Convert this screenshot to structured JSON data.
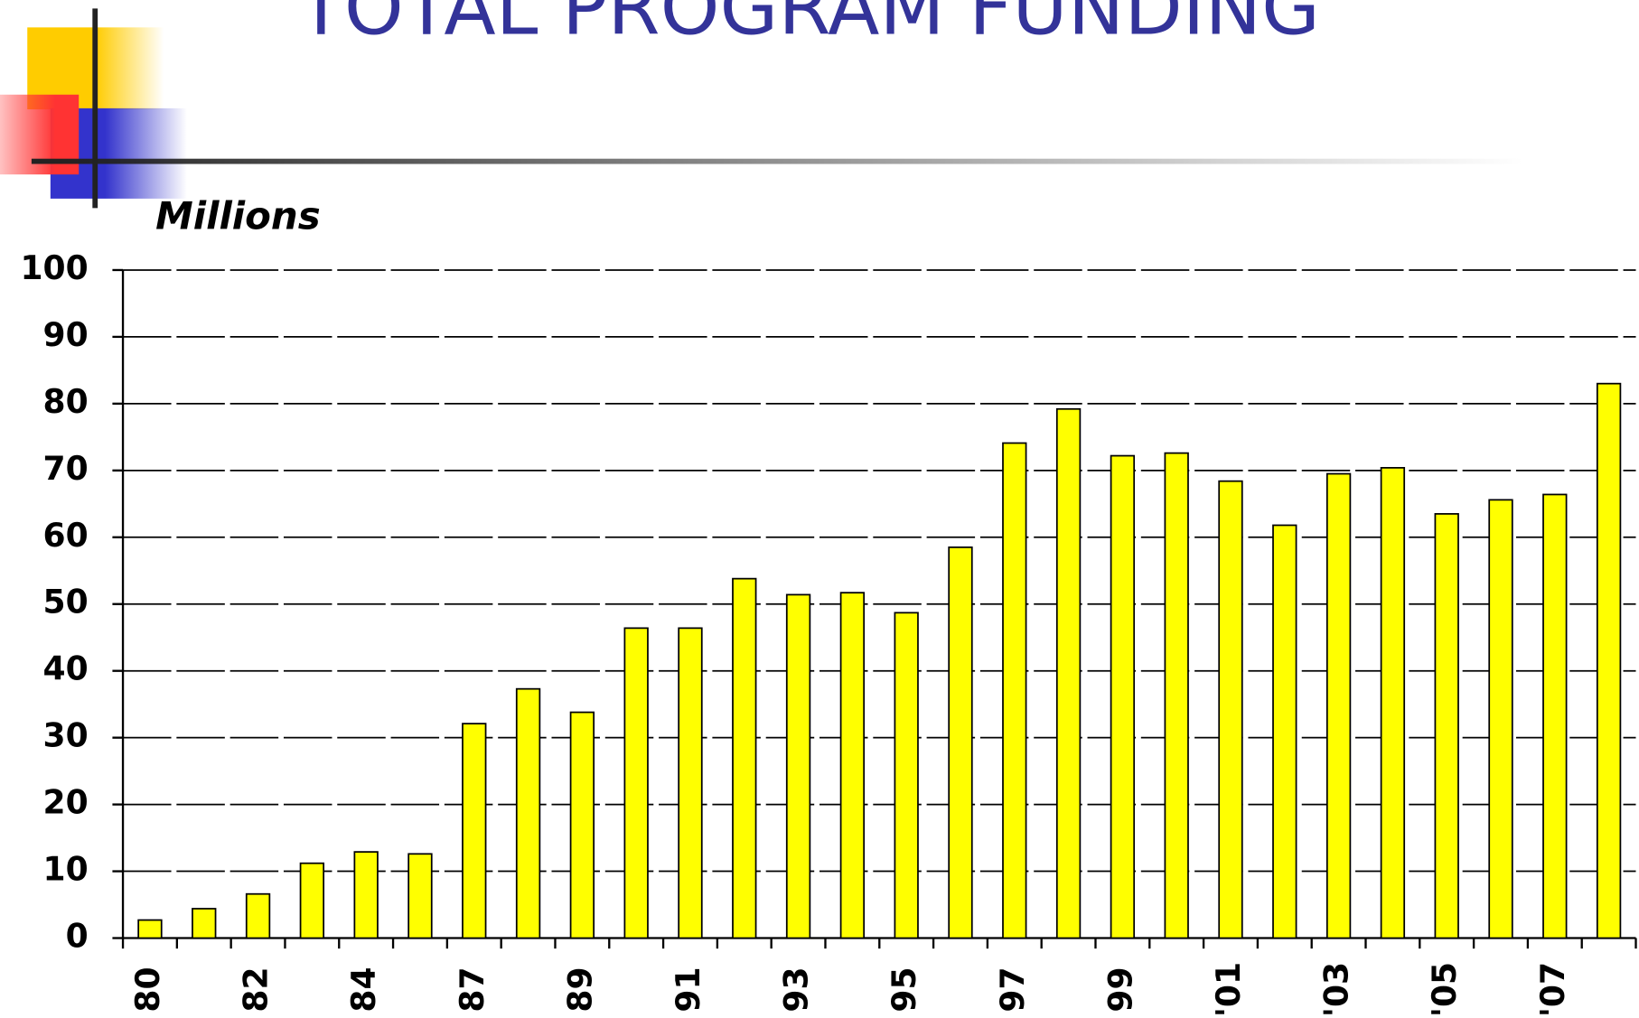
{
  "chart_data": {
    "type": "bar",
    "title": "TOTAL PROGRAM FUNDING",
    "y_axis_label": "Millions",
    "categories": [
      "80",
      null,
      "82",
      null,
      "84",
      null,
      "87",
      null,
      "89",
      null,
      "91",
      null,
      "93",
      null,
      "95",
      null,
      "97",
      null,
      "99",
      null,
      "'01",
      null,
      "'03",
      null,
      "'05",
      null,
      "'07",
      null
    ],
    "values": [
      2.7,
      4.4,
      6.6,
      11.2,
      12.9,
      12.6,
      32.1,
      37.3,
      33.8,
      46.4,
      46.4,
      53.8,
      51.4,
      51.7,
      48.7,
      58.5,
      74.1,
      79.2,
      72.2,
      72.6,
      68.4,
      61.8,
      69.5,
      70.4,
      63.5,
      65.6,
      66.4,
      83.0
    ],
    "color": "#ffff00",
    "ylim": [
      0,
      100
    ],
    "yticks": [
      0,
      10,
      20,
      30,
      40,
      50,
      60,
      70,
      80,
      90,
      100
    ],
    "grid": true
  }
}
